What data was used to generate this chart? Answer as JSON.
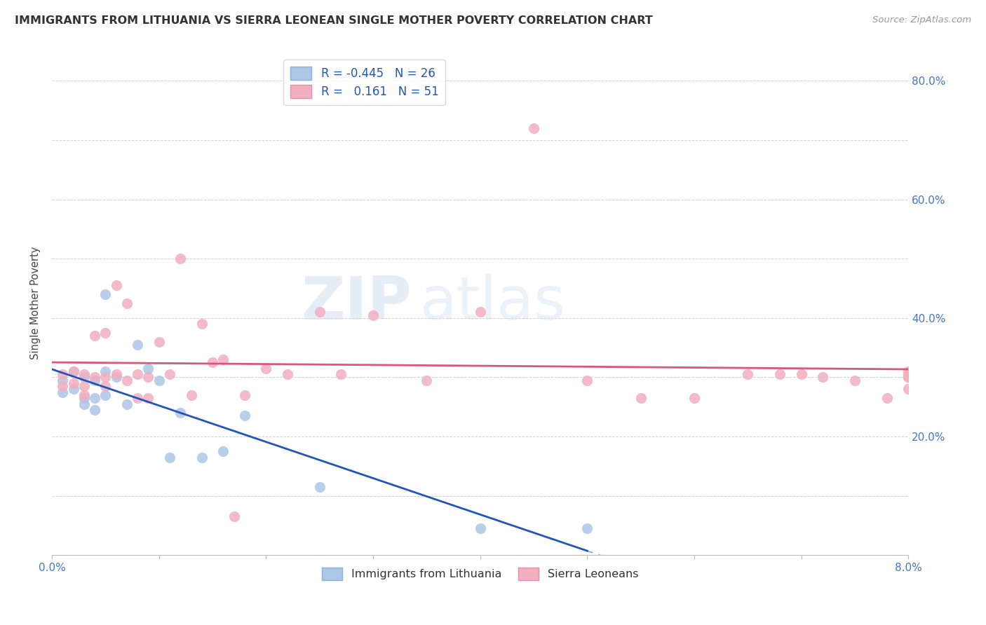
{
  "title": "IMMIGRANTS FROM LITHUANIA VS SIERRA LEONEAN SINGLE MOTHER POVERTY CORRELATION CHART",
  "source": "Source: ZipAtlas.com",
  "ylabel": "Single Mother Poverty",
  "xlim": [
    0.0,
    0.08
  ],
  "ylim": [
    0.0,
    0.85
  ],
  "legend_r_blue": "-0.445",
  "legend_n_blue": "26",
  "legend_r_pink": "0.161",
  "legend_n_pink": "51",
  "blue_color": "#adc6e8",
  "pink_color": "#f2afc0",
  "blue_line_color": "#2255bb",
  "pink_line_color": "#dd5577",
  "watermark_zip": "ZIP",
  "watermark_atlas": "atlas",
  "blue_scatter_x": [
    0.001,
    0.001,
    0.002,
    0.002,
    0.003,
    0.003,
    0.003,
    0.004,
    0.004,
    0.004,
    0.005,
    0.005,
    0.005,
    0.006,
    0.007,
    0.008,
    0.009,
    0.01,
    0.011,
    0.012,
    0.014,
    0.016,
    0.018,
    0.025,
    0.04,
    0.05
  ],
  "blue_scatter_y": [
    0.295,
    0.275,
    0.31,
    0.28,
    0.3,
    0.265,
    0.255,
    0.295,
    0.265,
    0.245,
    0.44,
    0.31,
    0.27,
    0.3,
    0.255,
    0.355,
    0.315,
    0.295,
    0.165,
    0.24,
    0.165,
    0.175,
    0.235,
    0.115,
    0.045,
    0.045
  ],
  "pink_scatter_x": [
    0.001,
    0.001,
    0.002,
    0.002,
    0.003,
    0.003,
    0.003,
    0.004,
    0.004,
    0.005,
    0.005,
    0.005,
    0.006,
    0.006,
    0.007,
    0.007,
    0.008,
    0.008,
    0.009,
    0.009,
    0.01,
    0.011,
    0.012,
    0.013,
    0.014,
    0.015,
    0.016,
    0.017,
    0.018,
    0.02,
    0.022,
    0.025,
    0.027,
    0.03,
    0.035,
    0.04,
    0.045,
    0.05,
    0.055,
    0.06,
    0.065,
    0.068,
    0.07,
    0.072,
    0.075,
    0.078,
    0.08,
    0.08,
    0.08,
    0.08,
    0.08
  ],
  "pink_scatter_y": [
    0.305,
    0.285,
    0.31,
    0.29,
    0.305,
    0.285,
    0.27,
    0.3,
    0.37,
    0.3,
    0.285,
    0.375,
    0.305,
    0.455,
    0.295,
    0.425,
    0.305,
    0.265,
    0.265,
    0.3,
    0.36,
    0.305,
    0.5,
    0.27,
    0.39,
    0.325,
    0.33,
    0.065,
    0.27,
    0.315,
    0.305,
    0.41,
    0.305,
    0.405,
    0.295,
    0.41,
    0.72,
    0.295,
    0.265,
    0.265,
    0.305,
    0.305,
    0.305,
    0.3,
    0.295,
    0.265,
    0.28,
    0.3,
    0.305,
    0.31,
    0.3
  ],
  "x_tick_labels": [
    "0.0%",
    "",
    "",
    "",
    "",
    "",
    "",
    "",
    "8.0%"
  ],
  "y_tick_labels_right": [
    "",
    "",
    "20.0%",
    "",
    "40.0%",
    "",
    "60.0%",
    "",
    "80.0%"
  ],
  "y_tick_positions": [
    0.0,
    0.1,
    0.2,
    0.3,
    0.4,
    0.5,
    0.6,
    0.7,
    0.8
  ],
  "x_tick_positions": [
    0.0,
    0.01,
    0.02,
    0.03,
    0.04,
    0.05,
    0.06,
    0.07,
    0.08
  ],
  "legend1_label": "Immigrants from Lithuania",
  "legend2_label": "Sierra Leoneans"
}
